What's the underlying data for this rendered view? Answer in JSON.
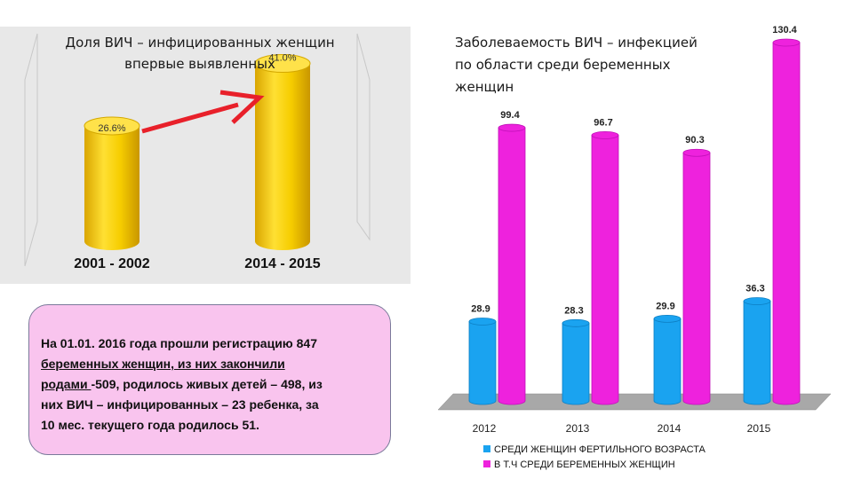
{
  "left_chart": {
    "title": "Доля ВИЧ – инфицированных женщин впервые выявленных",
    "chart_data": {
      "type": "bar",
      "categories": [
        "2001 - 2002",
        "2014 - 2015"
      ],
      "values": [
        26.6,
        41.0
      ],
      "value_labels": [
        "26.6%",
        "41.0%"
      ],
      "ylim": [
        0,
        45
      ],
      "colors": {
        "bar": "#f6cf00",
        "bar_dark": "#d8a800",
        "bar_top": "#ffe24a",
        "arrow": "#e8202a",
        "panel": "#e8e8e8"
      }
    }
  },
  "right_chart": {
    "title": "Заболеваемость ВИЧ – инфекцией по области среди беременных женщин",
    "chart_data": {
      "type": "bar",
      "categories": [
        "2012",
        "2013",
        "2014",
        "2015"
      ],
      "series": [
        {
          "name": "СРЕДИ ЖЕНЩИН ФЕРТИЛЬНОГО ВОЗРАСТА",
          "values": [
            28.9,
            28.3,
            29.9,
            36.3
          ],
          "value_labels": [
            "28.9",
            "28.3",
            "29.9",
            "36.3"
          ],
          "color": "#1aa3f0"
        },
        {
          "name": "В Т.Ч СРЕДИ БЕРЕМЕННЫХ ЖЕНЩИН",
          "values": [
            99.4,
            96.7,
            90.3,
            130.4
          ],
          "value_labels": [
            "99.4",
            "96.7",
            "90.3",
            "130.4"
          ],
          "color": "#ee22dd"
        }
      ],
      "ylim": [
        0,
        130.4
      ],
      "legend": "bottom"
    }
  },
  "info": {
    "p1": "На 01.01. 2016 года прошли регистрацию 847",
    "p2": "беременных женщин, из них закончили",
    "p3a": "родами ",
    "p3b": "-509, родилось живых детей – 498, из",
    "p4": "них ВИЧ – инфицированных – 23 ребенка, за",
    "p5": "10 мес. текущего года родилось 51."
  }
}
